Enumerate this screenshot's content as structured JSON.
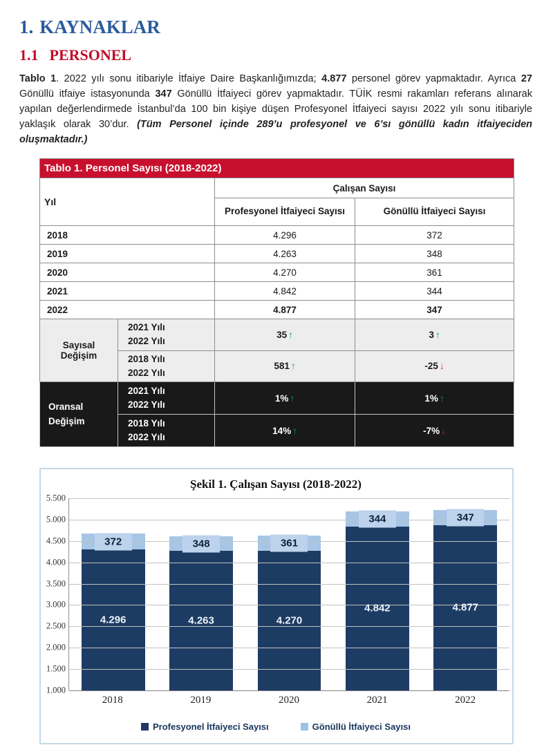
{
  "page": {
    "section_number": "1.",
    "section_title": "KAYNAKLAR",
    "subsection_number": "1.1",
    "subsection_title": "PERSONEL"
  },
  "paragraph": {
    "runs": [
      {
        "text": "Tablo 1",
        "style": "bold"
      },
      {
        "text": ". 2022 yılı sonu itibariyle İtfaiye Daire Başkanlığımızda; ",
        "style": ""
      },
      {
        "text": "4.877",
        "style": "bold"
      },
      {
        "text": " personel görev yapmaktadır. Ayrıca ",
        "style": ""
      },
      {
        "text": "27",
        "style": "bold"
      },
      {
        "text": " Gönüllü itfaiye istasyonunda ",
        "style": ""
      },
      {
        "text": "347",
        "style": "bold"
      },
      {
        "text": " Gönüllü İtfaiyeci görev yapmaktadır. TÜİK resmi rakamları referans alınarak yapılan değerlendirmede İstanbul’da 100 bin kişiye düşen Profesyonel İtfaiyeci sayısı 2022 yılı sonu itibariyle yaklaşık olarak 30’dur. ",
        "style": ""
      },
      {
        "text": "(Tüm Personel içinde 289’u profesyonel ve 6’sı gönüllü kadın itfaiyeciden oluşmaktadır.)",
        "style": "bold-italic"
      }
    ]
  },
  "table": {
    "title": "Tablo 1. Personel Sayısı (2018-2022)",
    "col_year": "Yıl",
    "col_group": "Çalışan Sayısı",
    "col_professional": "Profesyonel İtfaiyeci Sayısı",
    "col_volunteer": "Gönüllü İtfaiyeci Sayısı",
    "rows": [
      {
        "year": "2018",
        "prof": "4.296",
        "vol": "372"
      },
      {
        "year": "2019",
        "prof": "4.263",
        "vol": "348"
      },
      {
        "year": "2020",
        "prof": "4.270",
        "vol": "361"
      },
      {
        "year": "2021",
        "prof": "4.842",
        "vol": "344"
      },
      {
        "year": "2022",
        "prof": "4.877",
        "vol": "347"
      }
    ],
    "sayisal": {
      "label": "Sayısal Değişim",
      "rows": [
        {
          "period1": "2021 Yılı",
          "period2": "2022 Yılı",
          "prof": "35",
          "prof_arrow": "↑",
          "vol": "3",
          "vol_arrow": "↑"
        },
        {
          "period1": "2018 Yılı",
          "period2": "2022 Yılı",
          "prof": "581",
          "prof_arrow": "↑",
          "vol": "-25",
          "vol_arrow": "↓"
        }
      ]
    },
    "oransal": {
      "label": "Oransal Değişim",
      "rows": [
        {
          "period1": "2021 Yılı",
          "period2": "2022 Yılı",
          "prof": "1%",
          "prof_arrow": "↑",
          "vol": "1%",
          "vol_arrow": "↑"
        },
        {
          "period1": "2018 Yılı",
          "period2": "2022 Yılı",
          "prof": "14%",
          "prof_arrow": "↑",
          "vol": "-7%",
          "vol_arrow": "↓"
        }
      ]
    }
  },
  "chart_data": {
    "type": "bar",
    "stacked": true,
    "title": "Şekil 1. Çalışan Sayısı (2018-2022)",
    "categories": [
      "2018",
      "2019",
      "2020",
      "2021",
      "2022"
    ],
    "series": [
      {
        "name": "Profesyonel İtfaiyeci Sayısı",
        "color": "#1F3864",
        "values": [
          4296,
          4263,
          4270,
          4842,
          4877
        ],
        "labels": [
          "4.296",
          "4.263",
          "4.270",
          "4.842",
          "4.877"
        ]
      },
      {
        "name": "Gönüllü İtfaiyeci Sayısı",
        "color": "#9CC2E5",
        "values": [
          372,
          348,
          361,
          344,
          347
        ],
        "labels": [
          "372",
          "348",
          "361",
          "344",
          "347"
        ]
      }
    ],
    "ylim": [
      1000,
      5500
    ],
    "yticks": [
      {
        "value": 5500,
        "label": "5.500"
      },
      {
        "value": 5000,
        "label": "5.000"
      },
      {
        "value": 4500,
        "label": "4.500"
      },
      {
        "value": 4000,
        "label": "4.000"
      },
      {
        "value": 3500,
        "label": "3.500"
      },
      {
        "value": 3000,
        "label": "3.000"
      },
      {
        "value": 2500,
        "label": "2.500"
      },
      {
        "value": 2000,
        "label": "2.000"
      },
      {
        "value": 1500,
        "label": "1.500"
      },
      {
        "value": 1000,
        "label": "1.000"
      }
    ],
    "grid": true,
    "legend_position": "bottom"
  },
  "colors": {
    "heading_blue": "#2C5B9C",
    "heading_red": "#C00E27",
    "table_header_red": "#C8102E",
    "bar_dark_blue": "#1D3C63",
    "bar_light_blue": "#A7C5E5",
    "arrow_up_green": "#00A550",
    "arrow_down_red": "#EC1C24"
  }
}
